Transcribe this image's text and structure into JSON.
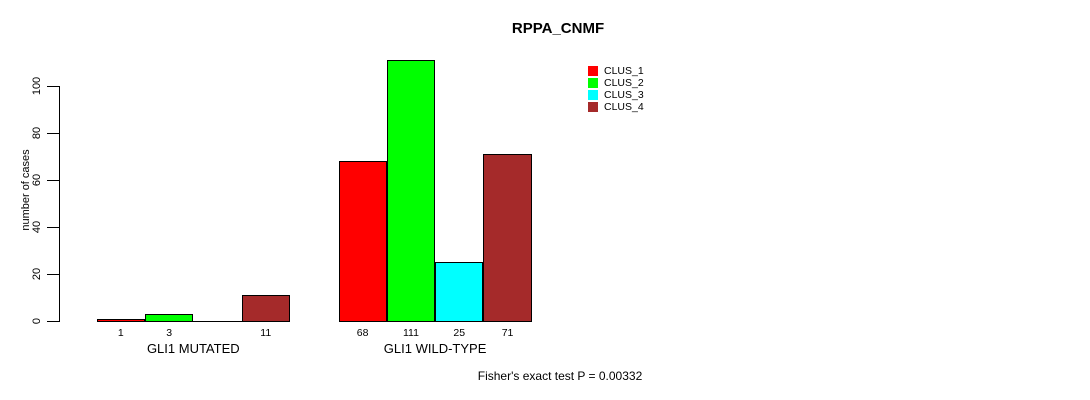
{
  "chart_data": {
    "type": "bar",
    "title": "RPPA_CNMF",
    "ylabel": "number of cases",
    "xlabel": "",
    "categories": [
      "GLI1 MUTATED",
      "GLI1 WILD-TYPE"
    ],
    "series": [
      {
        "name": "CLUS_1",
        "color": "#FF0000",
        "values": [
          1,
          68
        ]
      },
      {
        "name": "CLUS_2",
        "color": "#00FF00",
        "values": [
          3,
          111
        ]
      },
      {
        "name": "CLUS_3",
        "color": "#00FFFF",
        "values": [
          0,
          25
        ]
      },
      {
        "name": "CLUS_4",
        "color": "#A52A2A",
        "values": [
          11,
          71
        ]
      }
    ],
    "bar_value_labels": [
      [
        "1",
        "3",
        "",
        "11"
      ],
      [
        "68",
        "111",
        "25",
        "71"
      ]
    ],
    "yticks": [
      0,
      20,
      40,
      60,
      80,
      100
    ],
    "ylim": [
      0,
      115
    ],
    "grid": false,
    "legend_position": "top-right",
    "annotation": "Fisher's exact test P = 0.00332"
  }
}
